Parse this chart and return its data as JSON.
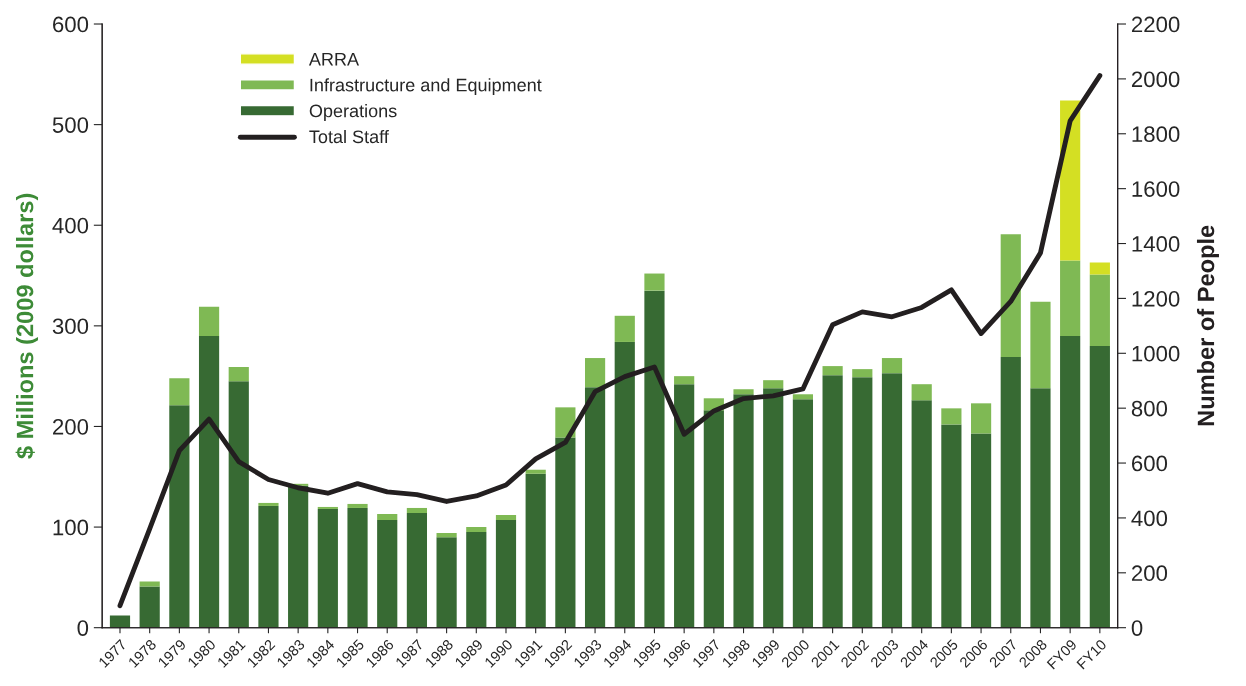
{
  "chart_data": {
    "type": "bar",
    "stacked": true,
    "ylabel": "$ Millions (2009 dollars)",
    "y2label": "Number of People",
    "categories": [
      "1977",
      "1978",
      "1979",
      "1980",
      "1981",
      "1982",
      "1983",
      "1984",
      "1985",
      "1986",
      "1987",
      "1988",
      "1989",
      "1990",
      "1991",
      "1992",
      "1993",
      "1994",
      "1995",
      "1996",
      "1997",
      "1998",
      "1999",
      "2000",
      "2001",
      "2002",
      "2003",
      "2004",
      "2005",
      "2006",
      "2007",
      "2008",
      "FY09",
      "FY10"
    ],
    "series": [
      {
        "name": "Operations",
        "color": "#376a33",
        "values": [
          12,
          41,
          221,
          290,
          245,
          121,
          141,
          118,
          119,
          107,
          114,
          90,
          95,
          107,
          153,
          189,
          239,
          284,
          335,
          242,
          216,
          232,
          238,
          227,
          251,
          249,
          253,
          226,
          202,
          193,
          269,
          238,
          290,
          280
        ]
      },
      {
        "name": "Infrastructure and Equipment",
        "color": "#7fb954",
        "values": [
          null,
          5,
          27,
          29,
          14,
          3,
          2,
          2,
          4,
          6,
          5,
          4,
          5,
          5,
          4,
          30,
          29,
          26,
          17,
          8,
          12,
          5,
          8,
          5,
          9,
          8,
          15,
          16,
          16,
          30,
          122,
          86,
          75,
          71
        ]
      },
      {
        "name": "ARRA",
        "color": "#d4df23",
        "values": [
          null,
          null,
          null,
          null,
          null,
          null,
          null,
          null,
          null,
          null,
          null,
          null,
          null,
          null,
          null,
          null,
          null,
          null,
          null,
          null,
          null,
          null,
          null,
          null,
          null,
          null,
          null,
          null,
          null,
          null,
          null,
          null,
          159,
          12
        ]
      },
      {
        "name": "Total Staff",
        "type": "line",
        "axis": "y2",
        "color": "#231f20",
        "values": [
          80,
          360,
          645,
          760,
          605,
          540,
          510,
          490,
          525,
          495,
          485,
          460,
          480,
          520,
          615,
          675,
          860,
          915,
          950,
          705,
          790,
          835,
          845,
          870,
          1104,
          1151,
          1133,
          1167,
          1231,
          1072,
          1189,
          1366,
          1847,
          2012
        ]
      }
    ],
    "ylim": [
      0,
      600
    ],
    "yticks": [
      0,
      100,
      200,
      300,
      400,
      500,
      600
    ],
    "y2lim": [
      0,
      2200
    ],
    "y2ticks": [
      0,
      200,
      400,
      600,
      800,
      1000,
      1200,
      1400,
      1600,
      1800,
      2000,
      2200
    ],
    "legend": "top left",
    "grid": false,
    "marker": "none",
    "line_style": "solid"
  }
}
